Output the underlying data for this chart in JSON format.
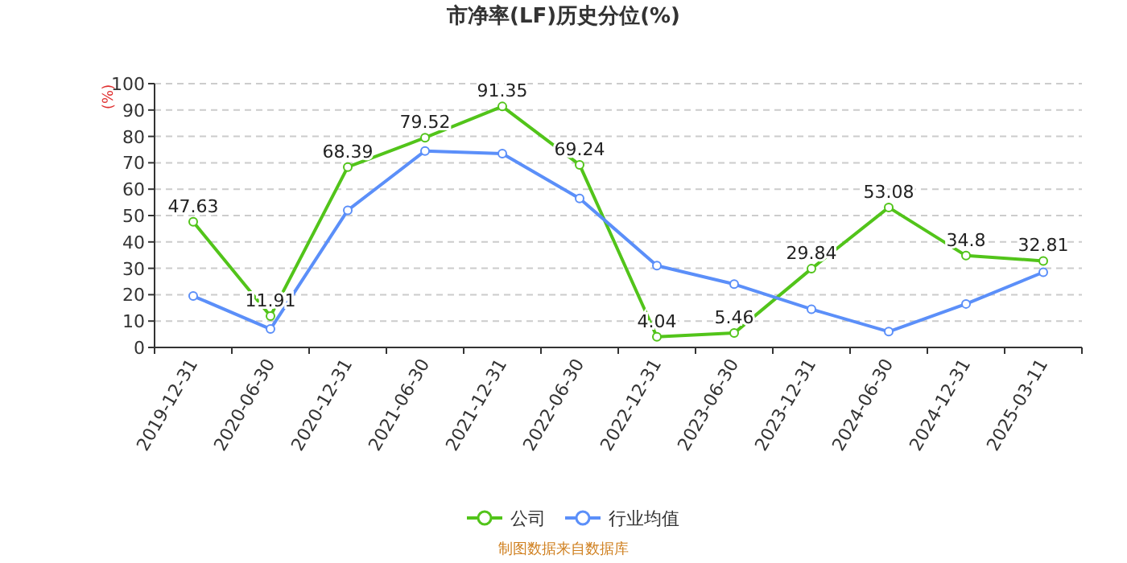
{
  "chart_data": {
    "type": "line",
    "title": "市净率(LF)历史分位(%)",
    "ylabel": "(%)",
    "categories": [
      "2019-12-31",
      "2020-06-30",
      "2020-12-31",
      "2021-06-30",
      "2021-12-31",
      "2022-06-30",
      "2022-12-31",
      "2023-06-30",
      "2023-12-31",
      "2024-06-30",
      "2024-12-31",
      "2025-03-11"
    ],
    "series": [
      {
        "name": "公司",
        "color": "#52c41a",
        "values": [
          47.63,
          11.91,
          68.39,
          79.52,
          91.35,
          69.24,
          4.04,
          5.46,
          29.84,
          53.08,
          34.8,
          32.81
        ],
        "data_labels": true
      },
      {
        "name": "行业均值",
        "color": "#5b8ff9",
        "values": [
          19.5,
          7,
          52,
          74.5,
          73.5,
          56.5,
          31,
          24,
          14.5,
          6,
          16.5,
          28.5
        ]
      }
    ],
    "ylim": [
      0,
      100
    ],
    "yticks": [
      0,
      10,
      20,
      30,
      40,
      50,
      60,
      70,
      80,
      90,
      100
    ],
    "grid": "y",
    "marker": "circle",
    "legend": "bottom",
    "annotations": [
      "制图数据来自数据库"
    ]
  }
}
